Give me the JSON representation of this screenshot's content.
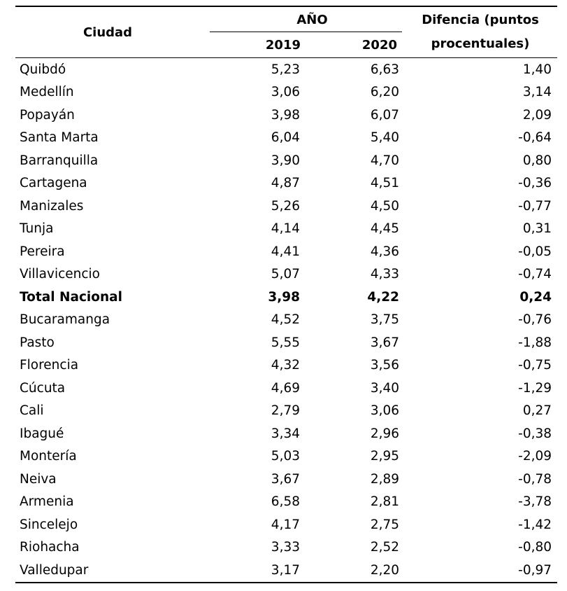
{
  "header": {
    "city_label": "Ciudad",
    "year_group_label": "AÑO",
    "year_1": "2019",
    "year_2": "2020",
    "diff_label": "Difencia (puntos procentuales)"
  },
  "rows": [
    {
      "city": "Quibdó",
      "v2019": "5,23",
      "v2020": "6,63",
      "diff": "1,40"
    },
    {
      "city": "Medellín",
      "v2019": "3,06",
      "v2020": "6,20",
      "diff": "3,14"
    },
    {
      "city": "Popayán",
      "v2019": "3,98",
      "v2020": "6,07",
      "diff": "2,09"
    },
    {
      "city": "Santa Marta",
      "v2019": "6,04",
      "v2020": "5,40",
      "diff": "-0,64"
    },
    {
      "city": "Barranquilla",
      "v2019": "3,90",
      "v2020": "4,70",
      "diff": "0,80"
    },
    {
      "city": "Cartagena",
      "v2019": "4,87",
      "v2020": "4,51",
      "diff": "-0,36"
    },
    {
      "city": "Manizales",
      "v2019": "5,26",
      "v2020": "4,50",
      "diff": "-0,77"
    },
    {
      "city": "Tunja",
      "v2019": "4,14",
      "v2020": "4,45",
      "diff": "0,31"
    },
    {
      "city": "Pereira",
      "v2019": "4,41",
      "v2020": "4,36",
      "diff": "-0,05"
    },
    {
      "city": "Villavicencio",
      "v2019": "5,07",
      "v2020": "4,33",
      "diff": "-0,74"
    },
    {
      "city": "Total Nacional",
      "v2019": "3,98",
      "v2020": "4,22",
      "diff": "0,24",
      "total": true
    },
    {
      "city": "Bucaramanga",
      "v2019": "4,52",
      "v2020": "3,75",
      "diff": "-0,76"
    },
    {
      "city": "Pasto",
      "v2019": "5,55",
      "v2020": "3,67",
      "diff": "-1,88"
    },
    {
      "city": "Florencia",
      "v2019": "4,32",
      "v2020": "3,56",
      "diff": "-0,75"
    },
    {
      "city": "Cúcuta",
      "v2019": "4,69",
      "v2020": "3,40",
      "diff": "-1,29"
    },
    {
      "city": "Cali",
      "v2019": "2,79",
      "v2020": "3,06",
      "diff": "0,27"
    },
    {
      "city": "Ibagué",
      "v2019": "3,34",
      "v2020": "2,96",
      "diff": "-0,38"
    },
    {
      "city": "Montería",
      "v2019": "5,03",
      "v2020": "2,95",
      "diff": "-2,09"
    },
    {
      "city": "Neiva",
      "v2019": "3,67",
      "v2020": "2,89",
      "diff": "-0,78"
    },
    {
      "city": "Armenia",
      "v2019": "6,58",
      "v2020": "2,81",
      "diff": "-3,78"
    },
    {
      "city": "Sincelejo",
      "v2019": "4,17",
      "v2020": "2,75",
      "diff": "-1,42"
    },
    {
      "city": "Riohacha",
      "v2019": "3,33",
      "v2020": "2,52",
      "diff": "-0,80"
    },
    {
      "city": "Valledupar",
      "v2019": "3,17",
      "v2020": "2,20",
      "diff": "-0,97"
    }
  ]
}
